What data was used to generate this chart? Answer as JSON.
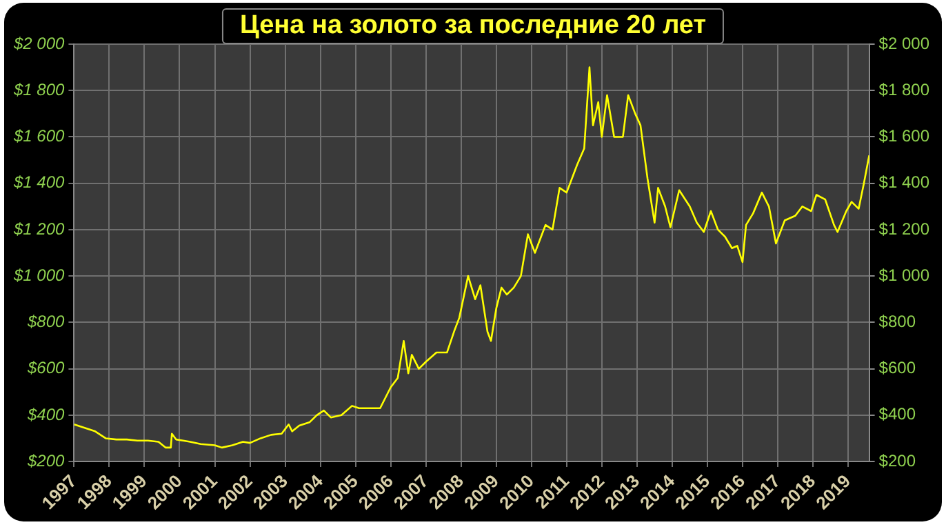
{
  "chart_data": {
    "type": "line",
    "title": "Цена на золото за последние 20 лет",
    "x": [
      1997.0,
      1997.3,
      1997.6,
      1997.9,
      1998.2,
      1998.5,
      1998.8,
      1999.1,
      1999.4,
      1999.6,
      1999.75,
      1999.78,
      1999.9,
      2000.1,
      2000.3,
      2000.6,
      2001.0,
      2001.2,
      2001.5,
      2001.8,
      2002.0,
      2002.3,
      2002.6,
      2002.9,
      2003.1,
      2003.2,
      2003.4,
      2003.7,
      2003.9,
      2004.1,
      2004.3,
      2004.6,
      2004.9,
      2005.1,
      2005.4,
      2005.7,
      2006.0,
      2006.2,
      2006.37,
      2006.5,
      2006.6,
      2006.8,
      2007.0,
      2007.3,
      2007.6,
      2007.8,
      2007.95,
      2008.2,
      2008.4,
      2008.55,
      2008.75,
      2008.85,
      2009.0,
      2009.15,
      2009.3,
      2009.5,
      2009.7,
      2009.9,
      2010.1,
      2010.4,
      2010.6,
      2010.8,
      2011.0,
      2011.3,
      2011.5,
      2011.65,
      2011.75,
      2011.9,
      2012.0,
      2012.15,
      2012.35,
      2012.6,
      2012.75,
      2012.95,
      2013.1,
      2013.3,
      2013.5,
      2013.6,
      2013.8,
      2013.95,
      2014.2,
      2014.5,
      2014.7,
      2014.9,
      2015.1,
      2015.3,
      2015.5,
      2015.7,
      2015.85,
      2016.0,
      2016.1,
      2016.3,
      2016.55,
      2016.75,
      2016.95,
      2017.2,
      2017.5,
      2017.7,
      2017.95,
      2018.1,
      2018.35,
      2018.6,
      2018.7,
      2018.95,
      2019.1,
      2019.3,
      2019.45,
      2019.6
    ],
    "series": [
      {
        "color": "#ffff00",
        "values": [
          360,
          345,
          330,
          300,
          295,
          295,
          290,
          290,
          285,
          260,
          260,
          320,
          295,
          290,
          285,
          275,
          270,
          260,
          270,
          285,
          280,
          300,
          315,
          320,
          360,
          330,
          355,
          370,
          400,
          420,
          390,
          400,
          440,
          430,
          430,
          430,
          520,
          560,
          720,
          580,
          660,
          600,
          630,
          670,
          670,
          760,
          820,
          1000,
          900,
          960,
          760,
          720,
          860,
          950,
          920,
          950,
          1000,
          1180,
          1100,
          1220,
          1200,
          1380,
          1360,
          1480,
          1550,
          1900,
          1650,
          1750,
          1600,
          1780,
          1600,
          1600,
          1780,
          1700,
          1650,
          1420,
          1230,
          1380,
          1300,
          1210,
          1370,
          1300,
          1230,
          1190,
          1280,
          1200,
          1170,
          1120,
          1130,
          1060,
          1220,
          1270,
          1360,
          1300,
          1140,
          1240,
          1260,
          1300,
          1280,
          1350,
          1330,
          1220,
          1190,
          1280,
          1320,
          1290,
          1400,
          1520
        ]
      }
    ],
    "xlim": [
      1997,
      2019.6
    ],
    "xticks": [
      1997,
      1998,
      1999,
      2000,
      2001,
      2002,
      2003,
      2004,
      2005,
      2006,
      2007,
      2008,
      2009,
      2010,
      2011,
      2012,
      2013,
      2014,
      2015,
      2016,
      2017,
      2018,
      2019
    ],
    "ylim": [
      200,
      2000
    ],
    "yticks": [
      {
        "value": 200,
        "label": "$200"
      },
      {
        "value": 400,
        "label": "$400"
      },
      {
        "value": 600,
        "label": "$600"
      },
      {
        "value": 800,
        "label": "$800"
      },
      {
        "value": 1000,
        "label": "$1 000"
      },
      {
        "value": 1200,
        "label": "$1 200"
      },
      {
        "value": 1400,
        "label": "$1 400"
      },
      {
        "value": 1600,
        "label": "$1 600"
      },
      {
        "value": 1800,
        "label": "$1 800"
      },
      {
        "value": 2000,
        "label": "$2 000"
      }
    ],
    "y2lim": [
      200,
      2000
    ],
    "y2ticks": [
      {
        "value": 200,
        "label": "$200"
      },
      {
        "value": 400,
        "label": "$400"
      },
      {
        "value": 600,
        "label": "$600"
      },
      {
        "value": 800,
        "label": "$800"
      },
      {
        "value": 1000,
        "label": "$1 000"
      },
      {
        "value": 1200,
        "label": "$1 200"
      },
      {
        "value": 1400,
        "label": "$1 400"
      },
      {
        "value": 1600,
        "label": "$1 600"
      },
      {
        "value": 1800,
        "label": "$1 800"
      },
      {
        "value": 2000,
        "label": "$2 000"
      }
    ],
    "grid": true,
    "legend": false,
    "marker": "none",
    "line_style": "solid"
  }
}
